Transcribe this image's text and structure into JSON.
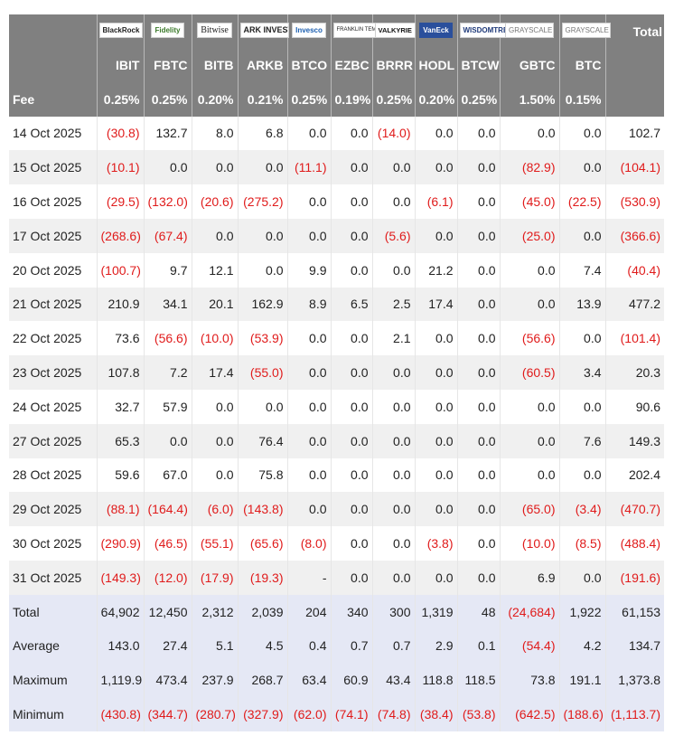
{
  "header": {
    "total_label": "Total",
    "fee_label": "Fee",
    "logos": [
      "BlackRock",
      "Fidelity",
      "Bitwise",
      "ARK INVEST",
      "Invesco",
      "FRANKLIN TEMPLETON",
      "VALKYRIE",
      "VanEck",
      "WISDOMTREE",
      "GRAYSCALE",
      "GRAYSCALE"
    ],
    "tickers": [
      "IBIT",
      "FBTC",
      "BITB",
      "ARKB",
      "BTCO",
      "EZBC",
      "BRRR",
      "HODL",
      "BTCW",
      "GBTC",
      "BTC"
    ],
    "fees": [
      "0.25%",
      "0.25%",
      "0.20%",
      "0.21%",
      "0.25%",
      "0.19%",
      "0.25%",
      "0.20%",
      "0.25%",
      "1.50%",
      "0.15%"
    ]
  },
  "rows": [
    {
      "date": "14 Oct 2025",
      "values": [
        "(30.8)",
        "132.7",
        "8.0",
        "6.8",
        "0.0",
        "0.0",
        "(14.0)",
        "0.0",
        "0.0",
        "0.0",
        "0.0",
        "102.7"
      ]
    },
    {
      "date": "15 Oct 2025",
      "values": [
        "(10.1)",
        "0.0",
        "0.0",
        "0.0",
        "(11.1)",
        "0.0",
        "0.0",
        "0.0",
        "0.0",
        "(82.9)",
        "0.0",
        "(104.1)"
      ]
    },
    {
      "date": "16 Oct 2025",
      "values": [
        "(29.5)",
        "(132.0)",
        "(20.6)",
        "(275.2)",
        "0.0",
        "0.0",
        "0.0",
        "(6.1)",
        "0.0",
        "(45.0)",
        "(22.5)",
        "(530.9)"
      ]
    },
    {
      "date": "17 Oct 2025",
      "values": [
        "(268.6)",
        "(67.4)",
        "0.0",
        "0.0",
        "0.0",
        "0.0",
        "(5.6)",
        "0.0",
        "0.0",
        "(25.0)",
        "0.0",
        "(366.6)"
      ]
    },
    {
      "date": "20 Oct 2025",
      "values": [
        "(100.7)",
        "9.7",
        "12.1",
        "0.0",
        "9.9",
        "0.0",
        "0.0",
        "21.2",
        "0.0",
        "0.0",
        "7.4",
        "(40.4)"
      ]
    },
    {
      "date": "21 Oct 2025",
      "values": [
        "210.9",
        "34.1",
        "20.1",
        "162.9",
        "8.9",
        "6.5",
        "2.5",
        "17.4",
        "0.0",
        "0.0",
        "13.9",
        "477.2"
      ]
    },
    {
      "date": "22 Oct 2025",
      "values": [
        "73.6",
        "(56.6)",
        "(10.0)",
        "(53.9)",
        "0.0",
        "0.0",
        "2.1",
        "0.0",
        "0.0",
        "(56.6)",
        "0.0",
        "(101.4)"
      ]
    },
    {
      "date": "23 Oct 2025",
      "values": [
        "107.8",
        "7.2",
        "17.4",
        "(55.0)",
        "0.0",
        "0.0",
        "0.0",
        "0.0",
        "0.0",
        "(60.5)",
        "3.4",
        "20.3"
      ]
    },
    {
      "date": "24 Oct 2025",
      "values": [
        "32.7",
        "57.9",
        "0.0",
        "0.0",
        "0.0",
        "0.0",
        "0.0",
        "0.0",
        "0.0",
        "0.0",
        "0.0",
        "90.6"
      ]
    },
    {
      "date": "27 Oct 2025",
      "values": [
        "65.3",
        "0.0",
        "0.0",
        "76.4",
        "0.0",
        "0.0",
        "0.0",
        "0.0",
        "0.0",
        "0.0",
        "7.6",
        "149.3"
      ]
    },
    {
      "date": "28 Oct 2025",
      "values": [
        "59.6",
        "67.0",
        "0.0",
        "75.8",
        "0.0",
        "0.0",
        "0.0",
        "0.0",
        "0.0",
        "0.0",
        "0.0",
        "202.4"
      ]
    },
    {
      "date": "29 Oct 2025",
      "values": [
        "(88.1)",
        "(164.4)",
        "(6.0)",
        "(143.8)",
        "0.0",
        "0.0",
        "0.0",
        "0.0",
        "0.0",
        "(65.0)",
        "(3.4)",
        "(470.7)"
      ]
    },
    {
      "date": "30 Oct 2025",
      "values": [
        "(290.9)",
        "(46.5)",
        "(55.1)",
        "(65.6)",
        "(8.0)",
        "0.0",
        "0.0",
        "(3.8)",
        "0.0",
        "(10.0)",
        "(8.5)",
        "(488.4)"
      ]
    },
    {
      "date": "31 Oct 2025",
      "values": [
        "(149.3)",
        "(12.0)",
        "(17.9)",
        "(19.3)",
        "-",
        "0.0",
        "0.0",
        "0.0",
        "0.0",
        "6.9",
        "0.0",
        "(191.6)"
      ]
    }
  ],
  "summary": [
    {
      "label": "Total",
      "values": [
        "64,902",
        "12,450",
        "2,312",
        "2,039",
        "204",
        "340",
        "300",
        "1,319",
        "48",
        "(24,684)",
        "1,922",
        "61,153"
      ]
    },
    {
      "label": "Average",
      "values": [
        "143.0",
        "27.4",
        "5.1",
        "4.5",
        "0.4",
        "0.7",
        "0.7",
        "2.9",
        "0.1",
        "(54.4)",
        "4.2",
        "134.7"
      ]
    },
    {
      "label": "Maximum",
      "values": [
        "1,119.9",
        "473.4",
        "237.9",
        "268.7",
        "63.4",
        "60.9",
        "43.4",
        "118.8",
        "118.5",
        "73.8",
        "191.1",
        "1,373.8"
      ]
    },
    {
      "label": "Minimum",
      "values": [
        "(430.8)",
        "(344.7)",
        "(280.7)",
        "(327.9)",
        "(62.0)",
        "(74.1)",
        "(74.8)",
        "(38.4)",
        "(53.8)",
        "(642.5)",
        "(188.6)",
        "(1,113.7)"
      ]
    }
  ]
}
